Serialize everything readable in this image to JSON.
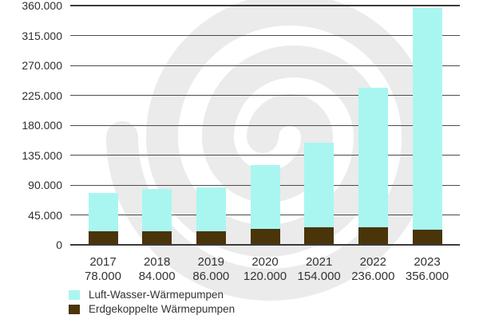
{
  "watermark": {
    "shape": "spiral",
    "color": "#ebebeb"
  },
  "colors": {
    "background": "#ffffff",
    "gridline": "#4c4c4c",
    "axis_line": "#3b3b3b",
    "text": "#333333",
    "air_water_cyan": "#a9f6f1",
    "ground_coupled_brown": "#4a3409"
  },
  "chart_data": {
    "type": "bar",
    "stacked": true,
    "title": "",
    "xlabel": "",
    "ylabel": "",
    "categories": [
      "2017",
      "2018",
      "2019",
      "2020",
      "2021",
      "2022",
      "2023"
    ],
    "totals": [
      78000,
      84000,
      86000,
      120000,
      154000,
      236000,
      356000
    ],
    "total_labels": [
      "78.000",
      "84.000",
      "86.000",
      "120.000",
      "154.000",
      "236.000",
      "356.000"
    ],
    "series": [
      {
        "name": "Luft-Wasser-Wärmepumpen",
        "color": "#a9f6f1",
        "values": [
          57000,
          63000,
          66000,
          96000,
          128000,
          210000,
          333000
        ]
      },
      {
        "name": "Erdgekoppelte Wärmepumpen",
        "color": "#4a3409",
        "values": [
          21000,
          21000,
          20000,
          24000,
          26000,
          26000,
          23000
        ]
      }
    ],
    "ylim": [
      0,
      360000
    ],
    "ytick_step": 45000,
    "ytick_labels": [
      "360.000",
      "315.000",
      "270.000",
      "225.000",
      "180.000",
      "135.000",
      "90.000",
      "45.000",
      "0"
    ],
    "grid": true,
    "legend_position": "bottom-left"
  }
}
